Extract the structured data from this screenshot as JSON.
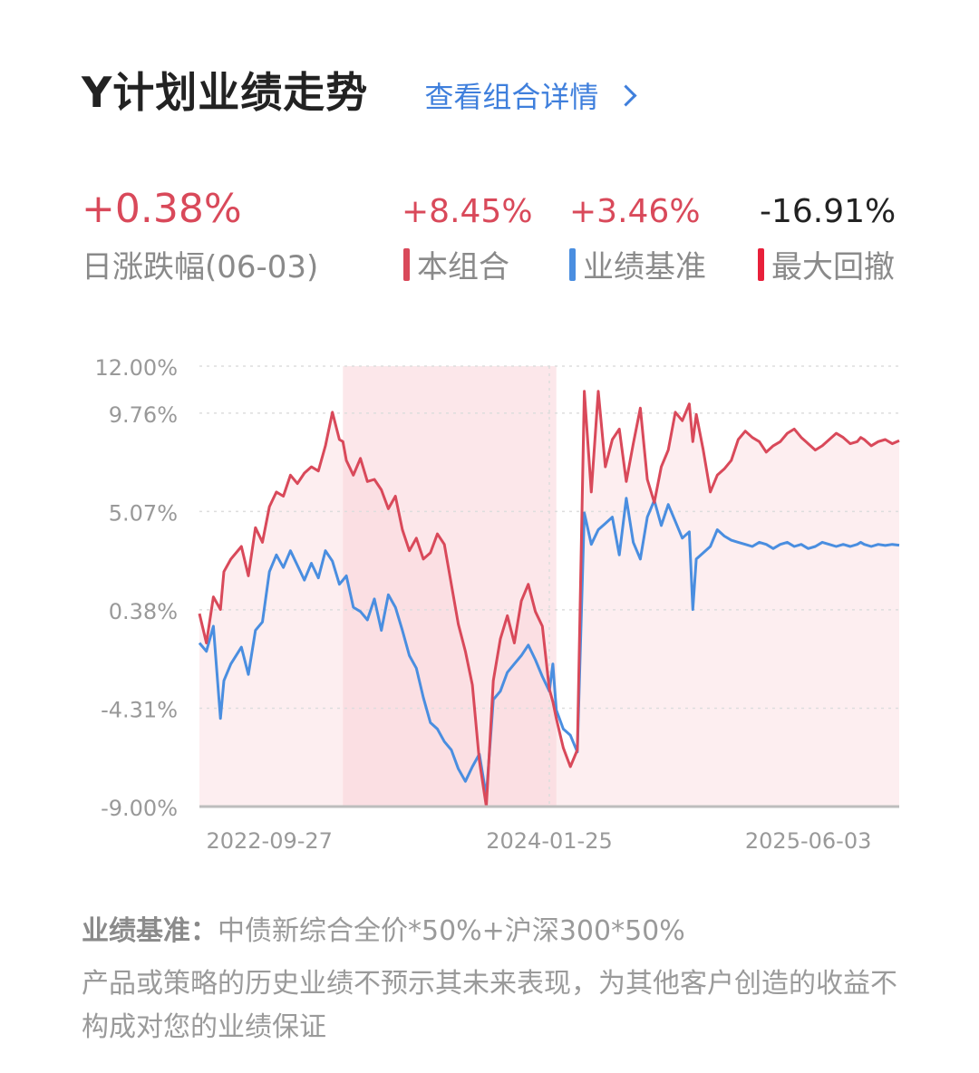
{
  "header": {
    "title": "Y计划业绩走势",
    "detail_link": "查看组合详情"
  },
  "stats": {
    "daily_change": {
      "value": "+0.38%",
      "label": "日涨跌幅(06-03)",
      "color": "#d9495a"
    },
    "portfolio": {
      "value": "+8.45%",
      "label": "本组合",
      "color": "#d9495a"
    },
    "benchmark": {
      "value": "+3.46%",
      "label": "业绩基准",
      "color": "#4a8ee0"
    },
    "max_drawdown": {
      "value": "-16.91%",
      "label": "最大回撤",
      "color": "#e8203a"
    }
  },
  "footer": {
    "benchmark_label": "业绩基准：",
    "benchmark_text": "中债新综合全价*50%+沪深300*50%",
    "disclaimer": "产品或策略的历史业绩不预示其未来表现，为其他客户创造的收益不构成对您的业绩保证"
  },
  "chart_data": {
    "type": "line",
    "xlabels": [
      "2022-09-27",
      "2024-01-25",
      "2025-06-03"
    ],
    "xlabel_positions": [
      0.1,
      0.5,
      0.87
    ],
    "yticks": [
      "12.00%",
      "9.76%",
      "5.07%",
      "0.38%",
      "-4.31%",
      "-9.00%"
    ],
    "ytick_values": [
      12,
      9.76,
      5.07,
      0.38,
      -4.31,
      -9
    ],
    "ylim": [
      -9,
      12
    ],
    "drawdown_region": [
      0.205,
      0.51
    ],
    "x": [
      0,
      0.01,
      0.02,
      0.03,
      0.035,
      0.045,
      0.06,
      0.07,
      0.08,
      0.09,
      0.1,
      0.11,
      0.12,
      0.13,
      0.14,
      0.15,
      0.16,
      0.17,
      0.18,
      0.19,
      0.2,
      0.205,
      0.21,
      0.22,
      0.23,
      0.24,
      0.25,
      0.26,
      0.27,
      0.28,
      0.29,
      0.3,
      0.31,
      0.32,
      0.33,
      0.34,
      0.35,
      0.36,
      0.37,
      0.38,
      0.39,
      0.4,
      0.41,
      0.42,
      0.43,
      0.44,
      0.45,
      0.46,
      0.47,
      0.48,
      0.49,
      0.5,
      0.505,
      0.51,
      0.52,
      0.53,
      0.54,
      0.55,
      0.56,
      0.57,
      0.58,
      0.59,
      0.6,
      0.61,
      0.62,
      0.63,
      0.64,
      0.65,
      0.66,
      0.67,
      0.68,
      0.69,
      0.7,
      0.705,
      0.71,
      0.72,
      0.73,
      0.74,
      0.75,
      0.76,
      0.77,
      0.78,
      0.79,
      0.8,
      0.81,
      0.82,
      0.83,
      0.84,
      0.85,
      0.86,
      0.87,
      0.88,
      0.89,
      0.9,
      0.91,
      0.92,
      0.93,
      0.94,
      0.945,
      0.95,
      0.96,
      0.97,
      0.98,
      0.99,
      1
    ],
    "series": [
      {
        "name": "本组合",
        "color": "#d9495a",
        "values": [
          0.2,
          -1.2,
          1.0,
          0.4,
          2.2,
          2.8,
          3.4,
          2.0,
          4.3,
          3.6,
          5.3,
          6.0,
          5.8,
          6.8,
          6.4,
          6.9,
          7.2,
          7.0,
          8.2,
          9.8,
          8.5,
          8.4,
          7.5,
          6.8,
          7.6,
          6.5,
          6.6,
          6.1,
          5.2,
          5.8,
          4.2,
          3.2,
          3.8,
          2.8,
          3.1,
          4.0,
          3.5,
          1.6,
          -0.3,
          -1.6,
          -3.2,
          -6.8,
          -9.0,
          -3.0,
          -1.0,
          0.1,
          -1.2,
          0.8,
          1.6,
          0.3,
          -0.4,
          -3.4,
          -4.0,
          -4.8,
          -6.2,
          -7.1,
          -6.3,
          10.8,
          6.0,
          10.8,
          7.2,
          8.5,
          9.0,
          6.5,
          8.3,
          10.0,
          6.6,
          5.5,
          7.2,
          8.0,
          9.8,
          9.4,
          10.2,
          8.4,
          9.7,
          8.0,
          6.0,
          6.8,
          7.1,
          7.5,
          8.5,
          8.9,
          8.6,
          8.4,
          7.9,
          8.2,
          8.4,
          8.8,
          9.0,
          8.6,
          8.3,
          8.0,
          8.2,
          8.5,
          8.8,
          8.6,
          8.3,
          8.4,
          8.6,
          8.5,
          8.2,
          8.4,
          8.5,
          8.3,
          8.45
        ]
      },
      {
        "name": "业绩基准",
        "color": "#4a8ee0",
        "values": [
          -1.2,
          -1.6,
          -0.4,
          -4.8,
          -3.0,
          -2.2,
          -1.4,
          -2.7,
          -0.6,
          -0.2,
          2.2,
          3.0,
          2.4,
          3.2,
          2.5,
          1.8,
          2.6,
          1.9,
          3.2,
          2.7,
          1.6,
          1.8,
          2.0,
          0.5,
          0.3,
          -0.1,
          0.9,
          -0.6,
          1.1,
          0.5,
          -0.6,
          -1.8,
          -2.4,
          -3.8,
          -5.0,
          -5.3,
          -5.9,
          -6.3,
          -7.2,
          -7.8,
          -7.1,
          -6.5,
          -8.5,
          -3.9,
          -3.5,
          -2.6,
          -2.2,
          -1.8,
          -1.3,
          -2.0,
          -2.8,
          -3.5,
          -2.2,
          -4.4,
          -5.3,
          -5.6,
          -6.4,
          5.0,
          3.5,
          4.2,
          4.5,
          4.8,
          3.0,
          5.7,
          3.6,
          2.8,
          4.8,
          5.6,
          4.4,
          5.4,
          4.6,
          3.8,
          4.1,
          0.4,
          2.8,
          3.1,
          3.4,
          4.2,
          3.9,
          3.7,
          3.6,
          3.5,
          3.4,
          3.6,
          3.5,
          3.3,
          3.5,
          3.6,
          3.4,
          3.5,
          3.3,
          3.4,
          3.6,
          3.5,
          3.4,
          3.5,
          3.4,
          3.5,
          3.6,
          3.5,
          3.4,
          3.5,
          3.45,
          3.5,
          3.46
        ]
      }
    ]
  }
}
